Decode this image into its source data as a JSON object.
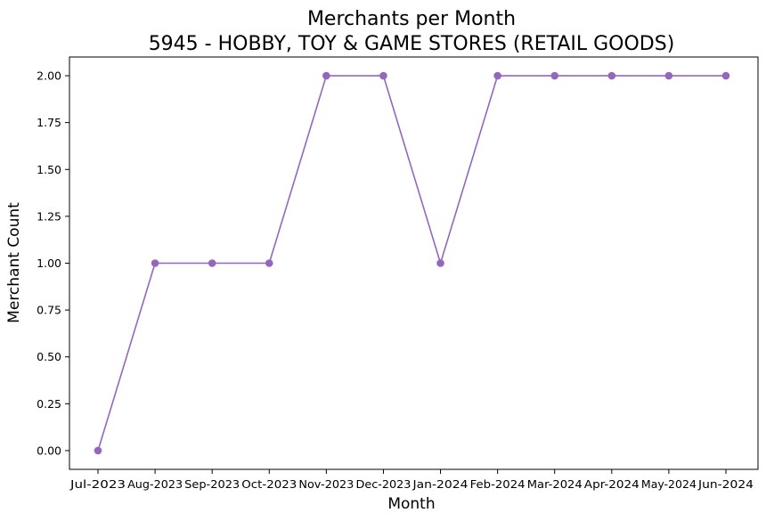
{
  "chart_data": {
    "type": "line",
    "title_line1": "Merchants per Month",
    "title_line2": "5945 - HOBBY, TOY & GAME STORES (RETAIL GOODS)",
    "xlabel": "Month",
    "ylabel": "Merchant Count",
    "categories": [
      "Jul-2023",
      "Aug-2023",
      "Sep-2023",
      "Oct-2023",
      "Nov-2023",
      "Dec-2023",
      "Jan-2024",
      "Feb-2024",
      "Mar-2024",
      "Apr-2024",
      "May-2024",
      "Jun-2024"
    ],
    "series": [
      {
        "values": [
          0,
          1,
          1,
          1,
          2,
          2,
          1,
          2,
          2,
          2,
          2,
          2
        ],
        "color": "#9467bd",
        "marker": "circle"
      }
    ],
    "yticks": [
      "0.00",
      "0.25",
      "0.50",
      "0.75",
      "1.00",
      "1.25",
      "1.50",
      "1.75",
      "2.00"
    ],
    "ylim": [
      -0.1,
      2.1
    ],
    "grid": false,
    "legend": "none"
  }
}
